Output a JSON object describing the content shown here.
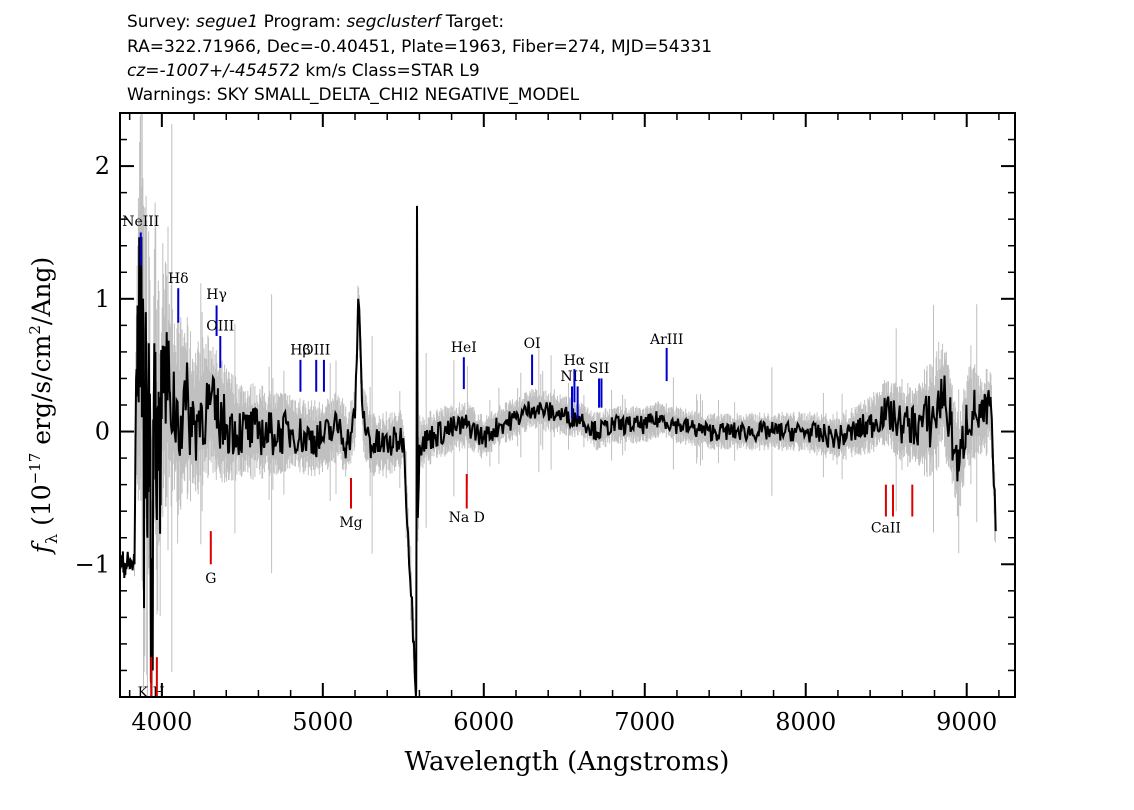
{
  "header": {
    "line1": {
      "survey_label": "Survey: ",
      "survey": "segue1",
      "program_label": " Program: ",
      "program": "segclusterf",
      "target_label": " Target:"
    },
    "line2": "RA=322.71966, Dec=-0.40451, Plate=1963, Fiber=274, MJD=54331",
    "line3": {
      "cz": "cz=-1007+/-454572",
      "rest": " km/s Class=STAR L9"
    },
    "line4": "Warnings: SKY SMALL_DELTA_CHI2 NEGATIVE_MODEL"
  },
  "chart_data": {
    "type": "line",
    "xlabel": "Wavelength (Angstroms)",
    "ylabel": "f_λ (10^-17 erg/s/cm^2/Ang)",
    "xlim": [
      3740,
      9300
    ],
    "ylim": [
      -2.0,
      2.4
    ],
    "xticks": [
      4000,
      5000,
      6000,
      7000,
      8000,
      9000
    ],
    "xtick_labels": [
      "4000",
      "5000",
      "6000",
      "7000",
      "8000",
      "9000"
    ],
    "yticks": [
      -1,
      0,
      1,
      2
    ],
    "ytick_labels": [
      "−1",
      "0",
      "1",
      "2"
    ],
    "grid": false,
    "series": [
      {
        "role": "error",
        "color": "#c0c0c0",
        "x": [
          3830,
          3860,
          3880,
          3900,
          3920,
          3940,
          3960,
          3980,
          4000,
          4050,
          4100,
          4150,
          4200,
          4300,
          4400,
          4500,
          4700,
          5000,
          5300,
          5500,
          5600,
          5800,
          6000,
          6200,
          6500,
          7000,
          7500,
          8000,
          8300,
          8500,
          8700,
          8800,
          8900,
          9000,
          9100,
          9180
        ],
        "values": [
          0.15,
          1.1,
          1.4,
          1.3,
          1.2,
          1.0,
          0.9,
          0.85,
          0.75,
          0.65,
          0.55,
          0.5,
          0.45,
          0.38,
          0.32,
          0.28,
          0.24,
          0.2,
          0.18,
          0.16,
          0.15,
          0.14,
          0.12,
          0.11,
          0.11,
          0.1,
          0.1,
          0.11,
          0.14,
          0.18,
          0.25,
          0.35,
          0.3,
          0.28,
          0.25,
          0.2
        ]
      },
      {
        "role": "flux",
        "color": "#000000",
        "x": [
          3740,
          3830,
          3840,
          3850,
          3860,
          3870,
          3880,
          3890,
          3900,
          3910,
          3920,
          3930,
          3940,
          3950,
          3960,
          3970,
          3980,
          3990,
          4000,
          4050,
          4100,
          4150,
          4200,
          4250,
          4300,
          4350,
          4400,
          4500,
          4600,
          4700,
          4800,
          4900,
          5000,
          5100,
          5150,
          5200,
          5220,
          5250,
          5300,
          5400,
          5500,
          5580,
          5585,
          5590,
          5600,
          5700,
          5800,
          5900,
          6000,
          6100,
          6200,
          6300,
          6400,
          6500,
          6600,
          6700,
          6800,
          6900,
          7000,
          7100,
          7200,
          7400,
          7600,
          7800,
          8000,
          8200,
          8400,
          8500,
          8600,
          8700,
          8800,
          8850,
          8900,
          8950,
          9000,
          9050,
          9100,
          9150,
          9180
        ],
        "values": [
          -1.0,
          -1.0,
          0.4,
          0.5,
          0.8,
          1.15,
          0.6,
          -0.6,
          0.9,
          -0.8,
          0.5,
          -0.95,
          -1.7,
          0.2,
          0.6,
          -0.5,
          0.3,
          -0.4,
          0.4,
          0.3,
          0.1,
          0.2,
          0.05,
          0.15,
          0.2,
          0.1,
          0.05,
          0.0,
          0.0,
          -0.02,
          0.0,
          -0.05,
          -0.05,
          0.05,
          -0.1,
          0.1,
          1.0,
          0.1,
          -0.1,
          -0.1,
          -0.05,
          -1.95,
          1.7,
          -0.65,
          -0.1,
          -0.02,
          0.02,
          0.05,
          -0.05,
          0.05,
          0.1,
          0.18,
          0.15,
          0.12,
          0.1,
          0.0,
          0.05,
          0.05,
          0.05,
          0.1,
          0.05,
          0.0,
          0.0,
          0.0,
          0.0,
          -0.05,
          0.05,
          0.15,
          0.05,
          0.05,
          0.1,
          0.3,
          0.05,
          -0.3,
          0.1,
          0.15,
          0.1,
          0.2,
          -0.75
        ]
      }
    ],
    "emission_lines": [
      {
        "label": "NeIII",
        "x": 3869,
        "y1": 1.25,
        "y2": 1.5,
        "label_y": 1.55,
        "color": "#0000cc"
      },
      {
        "label": "Hδ",
        "x": 4102,
        "y1": 0.82,
        "y2": 1.08,
        "label_y": 1.12,
        "color": "#0000cc"
      },
      {
        "label": "Hγ",
        "x": 4340,
        "y1": 0.72,
        "y2": 0.95,
        "label_y": 1.0,
        "color": "#0000cc"
      },
      {
        "label": "OIII",
        "x": 4363,
        "y1": 0.48,
        "y2": 0.72,
        "label_y": 0.76,
        "color": "#0000cc"
      },
      {
        "label": "Hβ",
        "x": 4861,
        "y1": 0.3,
        "y2": 0.54,
        "label_y": 0.58,
        "color": "#0000cc"
      },
      {
        "label": "OIII",
        "x": 4959,
        "y1": 0.3,
        "y2": 0.54,
        "label_y": 0.58,
        "color": "#0000cc"
      },
      {
        "label": "OIII",
        "x": 5007,
        "y1": 0.3,
        "y2": 0.54,
        "label_y": 0.58,
        "color": "#0000cc"
      },
      {
        "label": "HeI",
        "x": 5876,
        "y1": 0.32,
        "y2": 0.56,
        "label_y": 0.6,
        "color": "#0000cc"
      },
      {
        "label": "OI",
        "x": 6300,
        "y1": 0.35,
        "y2": 0.58,
        "label_y": 0.63,
        "color": "#0000cc"
      },
      {
        "label": "NII",
        "x": 6548,
        "y1": 0.1,
        "y2": 0.34,
        "label_y": 0.38,
        "color": "#0000cc"
      },
      {
        "label": "Hα",
        "x": 6563,
        "y1": 0.22,
        "y2": 0.47,
        "label_y": 0.5,
        "color": "#0000cc"
      },
      {
        "label": "NII",
        "x": 6583,
        "y1": 0.1,
        "y2": 0.34,
        "label_y": 0.38,
        "color": "#0000cc"
      },
      {
        "label": "SII",
        "x": 6716,
        "y1": 0.18,
        "y2": 0.4,
        "label_y": 0.44,
        "color": "#0000cc"
      },
      {
        "label": "SII",
        "x": 6731,
        "y1": 0.18,
        "y2": 0.4,
        "label_y": 0.44,
        "color": "#0000cc"
      },
      {
        "label": "ArIII",
        "x": 7136,
        "y1": 0.38,
        "y2": 0.63,
        "label_y": 0.66,
        "color": "#0000cc"
      }
    ],
    "absorption_lines": [
      {
        "label": "K H",
        "x": 3934,
        "y1": -2.1,
        "y2": -1.7,
        "label_y": -2.05,
        "color": "#dd0000"
      },
      {
        "label": "",
        "x": 3969,
        "y1": -2.1,
        "y2": -1.7,
        "label_y": -2.05,
        "color": "#dd0000"
      },
      {
        "label": "G",
        "x": 4304,
        "y1": -1.0,
        "y2": -0.75,
        "label_y": -1.14,
        "color": "#dd0000"
      },
      {
        "label": "Mg",
        "x": 5175,
        "y1": -0.58,
        "y2": -0.35,
        "label_y": -0.72,
        "color": "#dd0000"
      },
      {
        "label": "Na D",
        "x": 5894,
        "y1": -0.58,
        "y2": -0.32,
        "label_y": -0.68,
        "color": "#dd0000"
      },
      {
        "label": "CaII",
        "x": 8498,
        "y1": -0.64,
        "y2": -0.4,
        "label_y": -0.76,
        "color": "#dd0000"
      },
      {
        "label": "",
        "x": 8542,
        "y1": -0.64,
        "y2": -0.4,
        "label_y": -0.76,
        "color": "#dd0000"
      },
      {
        "label": "",
        "x": 8662,
        "y1": -0.64,
        "y2": -0.4,
        "label_y": -0.76,
        "color": "#dd0000"
      }
    ]
  }
}
